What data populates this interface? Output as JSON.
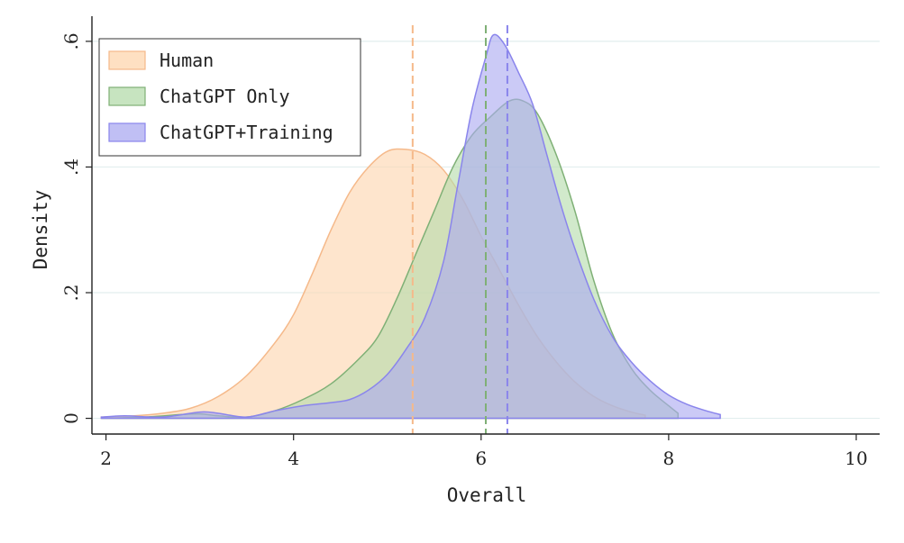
{
  "chart_data": {
    "type": "area",
    "xlabel": "Overall",
    "ylabel": "Density",
    "xlim": [
      1.85,
      10.25
    ],
    "ylim": [
      -0.025,
      0.64
    ],
    "x_ticks": [
      2,
      4,
      6,
      8,
      10
    ],
    "x_tick_labels": [
      "2",
      "4",
      "6",
      "8",
      "10"
    ],
    "y_ticks": [
      0,
      0.2,
      0.4,
      0.6
    ],
    "y_tick_labels": [
      "0",
      ".2",
      ".4",
      ".6"
    ],
    "grid": "horizontal",
    "legend_position": "top-left",
    "series": [
      {
        "name": "Human",
        "fill": "#fdd5ae",
        "stroke": "#f5b98a",
        "mean": 5.27,
        "points": [
          [
            1.95,
            0.002
          ],
          [
            2.3,
            0.004
          ],
          [
            2.6,
            0.008
          ],
          [
            2.9,
            0.016
          ],
          [
            3.2,
            0.035
          ],
          [
            3.5,
            0.068
          ],
          [
            3.8,
            0.12
          ],
          [
            4.0,
            0.165
          ],
          [
            4.2,
            0.23
          ],
          [
            4.4,
            0.3
          ],
          [
            4.6,
            0.36
          ],
          [
            4.8,
            0.4
          ],
          [
            5.0,
            0.425
          ],
          [
            5.2,
            0.428
          ],
          [
            5.4,
            0.42
          ],
          [
            5.6,
            0.395
          ],
          [
            5.8,
            0.35
          ],
          [
            6.0,
            0.29
          ],
          [
            6.2,
            0.235
          ],
          [
            6.4,
            0.18
          ],
          [
            6.6,
            0.13
          ],
          [
            6.8,
            0.09
          ],
          [
            7.0,
            0.058
          ],
          [
            7.2,
            0.035
          ],
          [
            7.4,
            0.02
          ],
          [
            7.6,
            0.01
          ],
          [
            7.75,
            0.005
          ]
        ]
      },
      {
        "name": "ChatGPT Only",
        "fill": "#b4dbab",
        "stroke": "#7fb076",
        "mean": 6.05,
        "points": [
          [
            1.95,
            0.0
          ],
          [
            2.4,
            0.002
          ],
          [
            2.8,
            0.006
          ],
          [
            3.0,
            0.007
          ],
          [
            3.2,
            0.004
          ],
          [
            3.5,
            0.002
          ],
          [
            3.8,
            0.012
          ],
          [
            4.1,
            0.03
          ],
          [
            4.4,
            0.055
          ],
          [
            4.7,
            0.095
          ],
          [
            4.9,
            0.13
          ],
          [
            5.1,
            0.19
          ],
          [
            5.3,
            0.26
          ],
          [
            5.5,
            0.33
          ],
          [
            5.7,
            0.4
          ],
          [
            5.9,
            0.45
          ],
          [
            6.1,
            0.48
          ],
          [
            6.3,
            0.505
          ],
          [
            6.45,
            0.505
          ],
          [
            6.6,
            0.485
          ],
          [
            6.8,
            0.42
          ],
          [
            7.0,
            0.33
          ],
          [
            7.2,
            0.22
          ],
          [
            7.4,
            0.135
          ],
          [
            7.6,
            0.08
          ],
          [
            7.8,
            0.045
          ],
          [
            8.0,
            0.02
          ],
          [
            8.1,
            0.008
          ]
        ]
      },
      {
        "name": "ChatGPT+Training",
        "fill": "#aba9f0",
        "stroke": "#8a85ec",
        "mean": 6.28,
        "points": [
          [
            1.95,
            0.002
          ],
          [
            2.2,
            0.004
          ],
          [
            2.6,
            0.002
          ],
          [
            3.0,
            0.01
          ],
          [
            3.2,
            0.008
          ],
          [
            3.5,
            0.002
          ],
          [
            3.8,
            0.012
          ],
          [
            4.1,
            0.02
          ],
          [
            4.4,
            0.025
          ],
          [
            4.6,
            0.03
          ],
          [
            4.8,
            0.045
          ],
          [
            5.0,
            0.07
          ],
          [
            5.2,
            0.11
          ],
          [
            5.4,
            0.16
          ],
          [
            5.6,
            0.25
          ],
          [
            5.75,
            0.37
          ],
          [
            5.9,
            0.49
          ],
          [
            6.05,
            0.575
          ],
          [
            6.13,
            0.61
          ],
          [
            6.25,
            0.595
          ],
          [
            6.4,
            0.55
          ],
          [
            6.55,
            0.5
          ],
          [
            6.7,
            0.42
          ],
          [
            6.85,
            0.34
          ],
          [
            7.0,
            0.27
          ],
          [
            7.2,
            0.19
          ],
          [
            7.4,
            0.13
          ],
          [
            7.6,
            0.09
          ],
          [
            7.8,
            0.06
          ],
          [
            8.0,
            0.037
          ],
          [
            8.2,
            0.022
          ],
          [
            8.4,
            0.012
          ],
          [
            8.55,
            0.006
          ]
        ]
      }
    ]
  }
}
